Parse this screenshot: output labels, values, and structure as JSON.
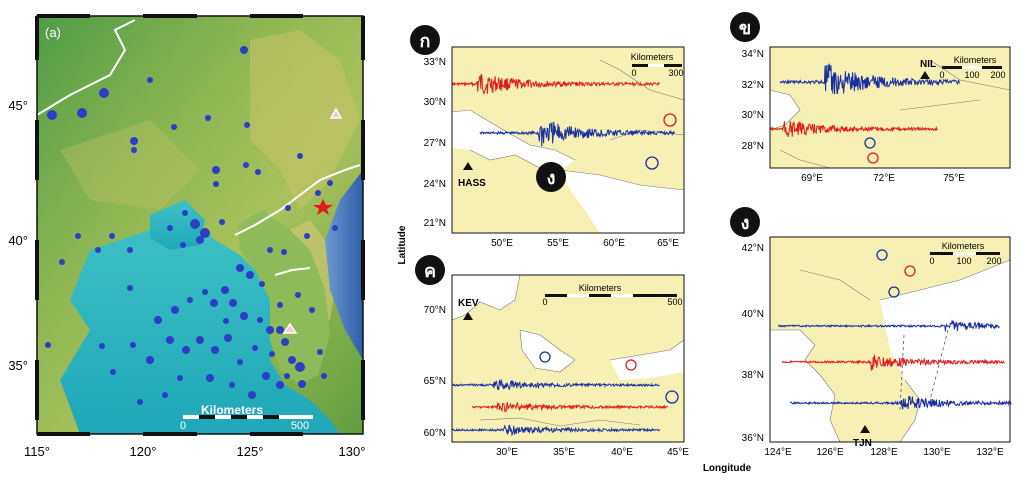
{
  "panel_a": {
    "label": "(a)",
    "x_ticks": [
      "115°",
      "120°",
      "125°",
      "130°"
    ],
    "y_ticks": [
      "45°",
      "40°",
      "35°"
    ],
    "scale_title": "Kilometers",
    "scale_start": "0",
    "scale_end": "500"
  },
  "panel_ko_kai": {
    "badge": "ก",
    "y_ticks": [
      "33°N",
      "30°N",
      "27°N",
      "24°N",
      "21°N"
    ],
    "x_ticks": [
      "50°E",
      "55°E",
      "60°E",
      "65°E"
    ],
    "scale_title": "Kilometers",
    "scale_start": "0",
    "scale_end": "300",
    "station": "HASS",
    "inner_badge": "ง"
  },
  "panel_kho_khai": {
    "badge": "ข",
    "y_ticks": [
      "34°N",
      "32°N",
      "30°N",
      "28°N"
    ],
    "x_ticks": [
      "69°E",
      "72°E",
      "75°E"
    ],
    "scale_title": "Kilometers",
    "scale_ticks": [
      "0",
      "100",
      "200"
    ],
    "station": "NIL"
  },
  "panel_kho_khwai": {
    "badge": "ค",
    "y_ticks": [
      "70°N",
      "65°N",
      "60°N"
    ],
    "x_ticks": [
      "30°E",
      "35°E",
      "40°E",
      "45°E"
    ],
    "scale_title": "Kilometers",
    "scale_start": "0",
    "scale_end": "500",
    "station": "KEV"
  },
  "panel_ngo_ngu": {
    "badge": "ง",
    "y_ticks": [
      "42°N",
      "40°N",
      "38°N",
      "36°N"
    ],
    "x_ticks": [
      "124°E",
      "126°E",
      "128°E",
      "130°E",
      "132°E"
    ],
    "scale_title": "Kilometers",
    "scale_ticks": [
      "0",
      "100",
      "200"
    ],
    "station": "TJN"
  },
  "axis": {
    "latitude": "Latitude",
    "longitude": "Longitude"
  },
  "colors": {
    "land": "#f7f0b4",
    "seismogram_blue": "#1a2fa0",
    "seismogram_red": "#e41b1b",
    "sea": "#ffffff",
    "badge": "#111111"
  }
}
